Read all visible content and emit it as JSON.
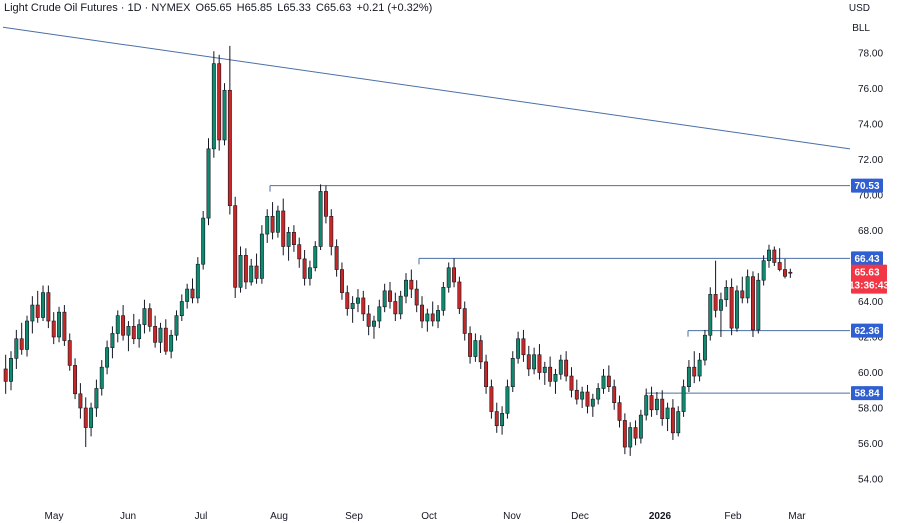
{
  "header": {
    "symbol": "Light Crude Oil Futures · 1D · NYMEX",
    "open": "O65.65",
    "high": "H65.85",
    "low": "L65.33",
    "close": "C65.63",
    "change": "+0.21 (+0.32%)"
  },
  "currency": "USD",
  "unit": "BLL",
  "colors": {
    "up": "#26a69a",
    "down": "#ef5350",
    "candle_up_body": "#0f8a6e",
    "candle_down_body": "#c62828",
    "wick": "#131722",
    "line": "#4a6fa5",
    "badge_blue": "#2f5fd0",
    "badge_red": "#f23645"
  },
  "chart_data": {
    "type": "candlestick",
    "title": "Light Crude Oil Futures · 1D · NYMEX",
    "y_ticks": [
      "78.00",
      "76.00",
      "74.00",
      "72.00",
      "70.00",
      "68.00",
      "66.00",
      "64.00",
      "62.00",
      "60.00",
      "58.00",
      "56.00",
      "54.00"
    ],
    "y_tick_values": [
      78,
      76,
      74,
      72,
      70,
      68,
      66,
      64,
      62,
      60,
      58,
      56,
      54
    ],
    "x_ticks": [
      "May",
      "Jun",
      "Jul",
      "Aug",
      "Sep",
      "Oct",
      "Nov",
      "Dec",
      "2026",
      "Feb",
      "Mar"
    ],
    "ylim": [
      53,
      80.5
    ],
    "levels": [
      {
        "label": "70.53",
        "value": 70.53
      },
      {
        "label": "66.43",
        "value": 66.43
      },
      {
        "label": "62.36",
        "value": 62.36
      },
      {
        "label": "58.84",
        "value": 58.84
      }
    ],
    "current_price": {
      "label": "65.63",
      "value": 65.63,
      "countdown": "13:36:43"
    },
    "trendline": {
      "start_value": 79.0,
      "end_value": 72.6
    },
    "candles": [
      [
        60.2,
        61.0,
        58.8,
        59.5
      ],
      [
        59.5,
        61.2,
        59.0,
        60.8
      ],
      [
        60.8,
        62.4,
        60.2,
        61.9
      ],
      [
        61.9,
        62.8,
        61.0,
        61.3
      ],
      [
        61.3,
        63.2,
        60.9,
        62.9
      ],
      [
        62.9,
        64.3,
        62.2,
        63.8
      ],
      [
        63.8,
        64.6,
        62.8,
        63.1
      ],
      [
        63.1,
        64.9,
        62.9,
        64.5
      ],
      [
        64.5,
        64.9,
        62.5,
        62.9
      ],
      [
        62.9,
        63.4,
        61.6,
        62.0
      ],
      [
        62.0,
        63.7,
        61.7,
        63.4
      ],
      [
        63.4,
        63.8,
        61.5,
        61.8
      ],
      [
        61.8,
        62.2,
        60.1,
        60.4
      ],
      [
        60.4,
        60.8,
        58.5,
        58.8
      ],
      [
        58.8,
        59.4,
        57.4,
        58.0
      ],
      [
        58.0,
        58.6,
        55.8,
        56.9
      ],
      [
        56.9,
        58.3,
        56.4,
        58.0
      ],
      [
        58.0,
        59.6,
        57.5,
        59.1
      ],
      [
        59.1,
        60.7,
        58.7,
        60.3
      ],
      [
        60.3,
        61.8,
        59.9,
        61.4
      ],
      [
        61.4,
        62.6,
        60.8,
        62.2
      ],
      [
        62.2,
        63.5,
        61.7,
        63.2
      ],
      [
        63.2,
        63.8,
        61.8,
        62.1
      ],
      [
        62.1,
        62.9,
        61.2,
        62.6
      ],
      [
        62.6,
        63.3,
        61.6,
        61.9
      ],
      [
        61.9,
        63.0,
        61.4,
        62.7
      ],
      [
        62.7,
        64.1,
        62.2,
        63.6
      ],
      [
        63.6,
        63.9,
        62.3,
        62.6
      ],
      [
        62.6,
        63.2,
        61.4,
        61.7
      ],
      [
        61.7,
        62.8,
        61.1,
        62.5
      ],
      [
        62.5,
        63.0,
        61.0,
        61.2
      ],
      [
        61.2,
        62.4,
        60.8,
        62.1
      ],
      [
        62.1,
        63.5,
        61.8,
        63.2
      ],
      [
        63.2,
        64.4,
        62.9,
        64.0
      ],
      [
        64.0,
        65.0,
        63.6,
        64.7
      ],
      [
        64.7,
        65.3,
        63.9,
        64.2
      ],
      [
        64.2,
        66.5,
        63.9,
        66.1
      ],
      [
        66.1,
        69.1,
        65.8,
        68.7
      ],
      [
        68.7,
        73.2,
        68.3,
        72.6
      ],
      [
        72.6,
        78.1,
        72.1,
        77.4
      ],
      [
        77.4,
        77.9,
        72.5,
        73.1
      ],
      [
        73.1,
        76.3,
        72.8,
        75.9
      ],
      [
        75.9,
        78.4,
        68.9,
        69.4
      ],
      [
        69.4,
        69.9,
        64.2,
        64.8
      ],
      [
        64.8,
        67.1,
        64.5,
        66.6
      ],
      [
        66.6,
        67.0,
        64.7,
        65.1
      ],
      [
        65.1,
        66.4,
        64.9,
        66.0
      ],
      [
        66.0,
        66.7,
        65.0,
        65.3
      ],
      [
        65.3,
        68.3,
        65.0,
        67.8
      ],
      [
        67.8,
        69.2,
        67.3,
        68.8
      ],
      [
        68.8,
        69.6,
        67.5,
        67.9
      ],
      [
        67.9,
        69.4,
        67.6,
        69.1
      ],
      [
        69.1,
        69.8,
        66.6,
        67.1
      ],
      [
        67.1,
        68.2,
        66.3,
        67.9
      ],
      [
        67.9,
        68.3,
        66.8,
        67.2
      ],
      [
        67.2,
        67.6,
        65.9,
        66.4
      ],
      [
        66.4,
        66.9,
        64.9,
        65.3
      ],
      [
        65.3,
        66.3,
        64.9,
        65.9
      ],
      [
        65.9,
        67.4,
        65.7,
        67.1
      ],
      [
        67.1,
        70.6,
        66.9,
        70.2
      ],
      [
        70.2,
        70.53,
        68.4,
        68.8
      ],
      [
        68.8,
        69.2,
        66.6,
        67.1
      ],
      [
        67.1,
        67.5,
        65.4,
        65.8
      ],
      [
        65.8,
        66.2,
        64.1,
        64.5
      ],
      [
        64.5,
        64.9,
        63.2,
        63.6
      ],
      [
        63.6,
        64.3,
        62.8,
        63.9
      ],
      [
        63.9,
        64.7,
        63.4,
        64.2
      ],
      [
        64.2,
        64.6,
        62.9,
        63.3
      ],
      [
        63.3,
        63.8,
        62.1,
        62.6
      ],
      [
        62.6,
        63.2,
        61.9,
        62.9
      ],
      [
        62.9,
        64.1,
        62.5,
        63.7
      ],
      [
        63.7,
        65.0,
        63.4,
        64.6
      ],
      [
        64.6,
        65.1,
        63.6,
        64.0
      ],
      [
        64.0,
        64.5,
        62.9,
        63.3
      ],
      [
        63.3,
        64.6,
        63.0,
        64.3
      ],
      [
        64.3,
        65.6,
        63.9,
        65.2
      ],
      [
        65.2,
        65.8,
        64.2,
        64.7
      ],
      [
        64.7,
        65.2,
        63.4,
        63.8
      ],
      [
        63.8,
        64.3,
        62.5,
        62.9
      ],
      [
        62.9,
        63.6,
        62.3,
        63.3
      ],
      [
        63.3,
        64.0,
        62.6,
        62.9
      ],
      [
        62.9,
        63.8,
        62.5,
        63.5
      ],
      [
        63.5,
        65.1,
        63.2,
        64.8
      ],
      [
        64.8,
        66.2,
        64.5,
        65.9
      ],
      [
        65.9,
        66.43,
        64.8,
        65.1
      ],
      [
        65.1,
        65.4,
        63.3,
        63.6
      ],
      [
        63.6,
        64.0,
        61.8,
        62.2
      ],
      [
        62.2,
        62.6,
        60.5,
        60.9
      ],
      [
        60.9,
        62.2,
        60.6,
        61.8
      ],
      [
        61.8,
        62.1,
        60.2,
        60.6
      ],
      [
        60.6,
        61.0,
        58.8,
        59.2
      ],
      [
        59.2,
        59.6,
        57.4,
        57.8
      ],
      [
        57.8,
        58.3,
        56.6,
        57.0
      ],
      [
        57.0,
        58.1,
        56.5,
        57.7
      ],
      [
        57.7,
        59.6,
        57.4,
        59.2
      ],
      [
        59.2,
        61.2,
        58.9,
        60.8
      ],
      [
        60.8,
        62.3,
        60.5,
        61.9
      ],
      [
        61.9,
        62.4,
        60.6,
        61.0
      ],
      [
        61.0,
        61.5,
        59.8,
        60.2
      ],
      [
        60.2,
        61.4,
        59.9,
        61.0
      ],
      [
        61.0,
        61.6,
        59.6,
        60.0
      ],
      [
        60.0,
        60.6,
        59.3,
        60.3
      ],
      [
        60.3,
        60.9,
        59.2,
        59.5
      ],
      [
        59.5,
        60.2,
        58.8,
        59.9
      ],
      [
        59.9,
        61.0,
        59.6,
        60.7
      ],
      [
        60.7,
        61.2,
        59.5,
        59.8
      ],
      [
        59.8,
        60.3,
        58.6,
        59.0
      ],
      [
        59.0,
        59.6,
        58.2,
        58.5
      ],
      [
        58.5,
        59.2,
        58.0,
        58.9
      ],
      [
        58.9,
        59.3,
        57.7,
        58.1
      ],
      [
        58.1,
        58.8,
        57.5,
        58.5
      ],
      [
        58.5,
        59.4,
        58.2,
        59.1
      ],
      [
        59.1,
        60.2,
        58.8,
        59.8
      ],
      [
        59.8,
        60.4,
        58.9,
        59.2
      ],
      [
        59.2,
        59.6,
        57.9,
        58.3
      ],
      [
        58.3,
        58.7,
        56.9,
        57.3
      ],
      [
        57.3,
        57.7,
        55.4,
        55.8
      ],
      [
        55.8,
        57.2,
        55.3,
        56.9
      ],
      [
        56.9,
        57.3,
        55.9,
        56.3
      ],
      [
        56.3,
        57.9,
        56.0,
        57.6
      ],
      [
        57.6,
        59.1,
        57.3,
        58.7
      ],
      [
        58.7,
        59.2,
        57.5,
        57.9
      ],
      [
        57.9,
        58.9,
        57.6,
        58.5
      ],
      [
        58.5,
        59.0,
        57.0,
        57.4
      ],
      [
        57.4,
        58.3,
        56.7,
        58.0
      ],
      [
        58.0,
        58.5,
        56.2,
        56.6
      ],
      [
        56.6,
        58.1,
        56.4,
        57.8
      ],
      [
        57.8,
        59.6,
        57.5,
        59.2
      ],
      [
        59.2,
        60.7,
        58.9,
        60.3
      ],
      [
        60.3,
        61.2,
        59.4,
        59.8
      ],
      [
        59.8,
        61.1,
        59.5,
        60.7
      ],
      [
        60.7,
        62.4,
        60.4,
        62.1
      ],
      [
        62.1,
        64.8,
        61.8,
        64.4
      ],
      [
        64.4,
        66.3,
        63.1,
        63.5
      ],
      [
        63.5,
        64.5,
        62.0,
        64.1
      ],
      [
        64.1,
        65.2,
        63.7,
        64.8
      ],
      [
        64.8,
        65.3,
        62.1,
        62.5
      ],
      [
        62.5,
        64.9,
        62.3,
        64.6
      ],
      [
        64.6,
        65.4,
        63.9,
        64.2
      ],
      [
        64.2,
        65.8,
        63.9,
        65.4
      ],
      [
        65.4,
        65.7,
        62.0,
        62.4
      ],
      [
        62.4,
        65.6,
        62.2,
        65.2
      ],
      [
        65.2,
        66.6,
        64.9,
        66.3
      ],
      [
        66.3,
        67.2,
        65.9,
        66.9
      ],
      [
        66.9,
        67.1,
        66.0,
        66.2
      ],
      [
        66.2,
        67.0,
        65.7,
        65.8
      ],
      [
        65.8,
        66.4,
        65.3,
        65.42
      ],
      [
        65.65,
        65.85,
        65.33,
        65.63
      ]
    ]
  }
}
